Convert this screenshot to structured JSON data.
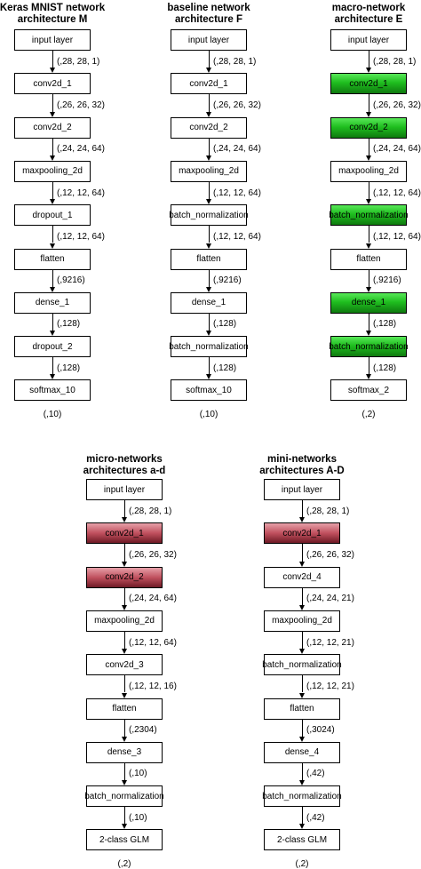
{
  "diagrams": [
    {
      "title": "Keras MNIST network\narchitecture  M",
      "layers": [
        {
          "label": "input layer",
          "style": "plain"
        },
        {
          "label": "conv2d_1",
          "style": "plain"
        },
        {
          "label": "conv2d_2",
          "style": "plain"
        },
        {
          "label": "maxpooling_2d",
          "style": "plain"
        },
        {
          "label": "dropout_1",
          "style": "plain"
        },
        {
          "label": "flatten",
          "style": "plain"
        },
        {
          "label": "dense_1",
          "style": "plain"
        },
        {
          "label": "dropout_2",
          "style": "plain"
        },
        {
          "label": "softmax_10",
          "style": "plain"
        }
      ],
      "shapes": [
        "(,28, 28, 1)",
        "(,26, 26, 32)",
        "(,24, 24, 64)",
        "(,12, 12, 64)",
        "(,12, 12, 64)",
        "(,9216)",
        "(,128)",
        "(,128)"
      ],
      "output": "(,10)"
    },
    {
      "title": "baseline network\narchitecture  F",
      "layers": [
        {
          "label": "input layer",
          "style": "plain"
        },
        {
          "label": "conv2d_1",
          "style": "plain"
        },
        {
          "label": "conv2d_2",
          "style": "plain"
        },
        {
          "label": "maxpooling_2d",
          "style": "plain"
        },
        {
          "label": "batch_normalization",
          "style": "plain"
        },
        {
          "label": "flatten",
          "style": "plain"
        },
        {
          "label": "dense_1",
          "style": "plain"
        },
        {
          "label": "batch_normalization",
          "style": "plain"
        },
        {
          "label": "softmax_10",
          "style": "plain"
        }
      ],
      "shapes": [
        "(,28, 28, 1)",
        "(,26, 26, 32)",
        "(,24, 24, 64)",
        "(,12, 12, 64)",
        "(,12, 12, 64)",
        "(,9216)",
        "(,128)",
        "(,128)"
      ],
      "output": "(,10)"
    },
    {
      "title": "macro-network\narchitecture  E",
      "layers": [
        {
          "label": "input layer",
          "style": "plain"
        },
        {
          "label": "conv2d_1",
          "style": "green"
        },
        {
          "label": "conv2d_2",
          "style": "green"
        },
        {
          "label": "maxpooling_2d",
          "style": "plain"
        },
        {
          "label": "batch_normalization",
          "style": "green"
        },
        {
          "label": "flatten",
          "style": "plain"
        },
        {
          "label": "dense_1",
          "style": "green"
        },
        {
          "label": "batch_normalization",
          "style": "green"
        },
        {
          "label": "softmax_2",
          "style": "plain"
        }
      ],
      "shapes": [
        "(,28, 28, 1)",
        "(,26, 26, 32)",
        "(,24, 24, 64)",
        "(,12, 12, 64)",
        "(,12, 12, 64)",
        "(,9216)",
        "(,128)",
        "(,128)"
      ],
      "output": "(,2)"
    },
    {
      "title": "micro-networks\narchitectures a-d",
      "layers": [
        {
          "label": "input layer",
          "style": "plain"
        },
        {
          "label": "conv2d_1",
          "style": "red"
        },
        {
          "label": "conv2d_2",
          "style": "red"
        },
        {
          "label": "maxpooling_2d",
          "style": "plain"
        },
        {
          "label": "conv2d_3",
          "style": "plain"
        },
        {
          "label": "flatten",
          "style": "plain"
        },
        {
          "label": "dense_3",
          "style": "plain"
        },
        {
          "label": "batch_normalization",
          "style": "plain"
        },
        {
          "label": "2-class GLM",
          "style": "plain"
        }
      ],
      "shapes": [
        "(,28, 28, 1)",
        "(,26, 26, 32)",
        "(,24, 24, 64)",
        "(,12, 12, 64)",
        "(,12, 12, 16)",
        "(,2304)",
        "(,10)",
        "(,10)"
      ],
      "output": "(,2)"
    },
    {
      "title": "mini-networks\narchitectures A-D",
      "layers": [
        {
          "label": "input layer",
          "style": "plain"
        },
        {
          "label": "conv2d_1",
          "style": "red"
        },
        {
          "label": "conv2d_4",
          "style": "plain"
        },
        {
          "label": "maxpooling_2d",
          "style": "plain"
        },
        {
          "label": "batch_normalization",
          "style": "plain"
        },
        {
          "label": "flatten",
          "style": "plain"
        },
        {
          "label": "dense_4",
          "style": "plain"
        },
        {
          "label": "batch_normalization",
          "style": "plain"
        },
        {
          "label": "2-class GLM",
          "style": "plain"
        }
      ],
      "shapes": [
        "(,28, 28, 1)",
        "(,26, 26, 32)",
        "(,24, 24, 21)",
        "(,12, 12, 21)",
        "(,12, 12, 21)",
        "(,3024)",
        "(,42)",
        "(,42)"
      ],
      "output": "(,2)"
    }
  ]
}
